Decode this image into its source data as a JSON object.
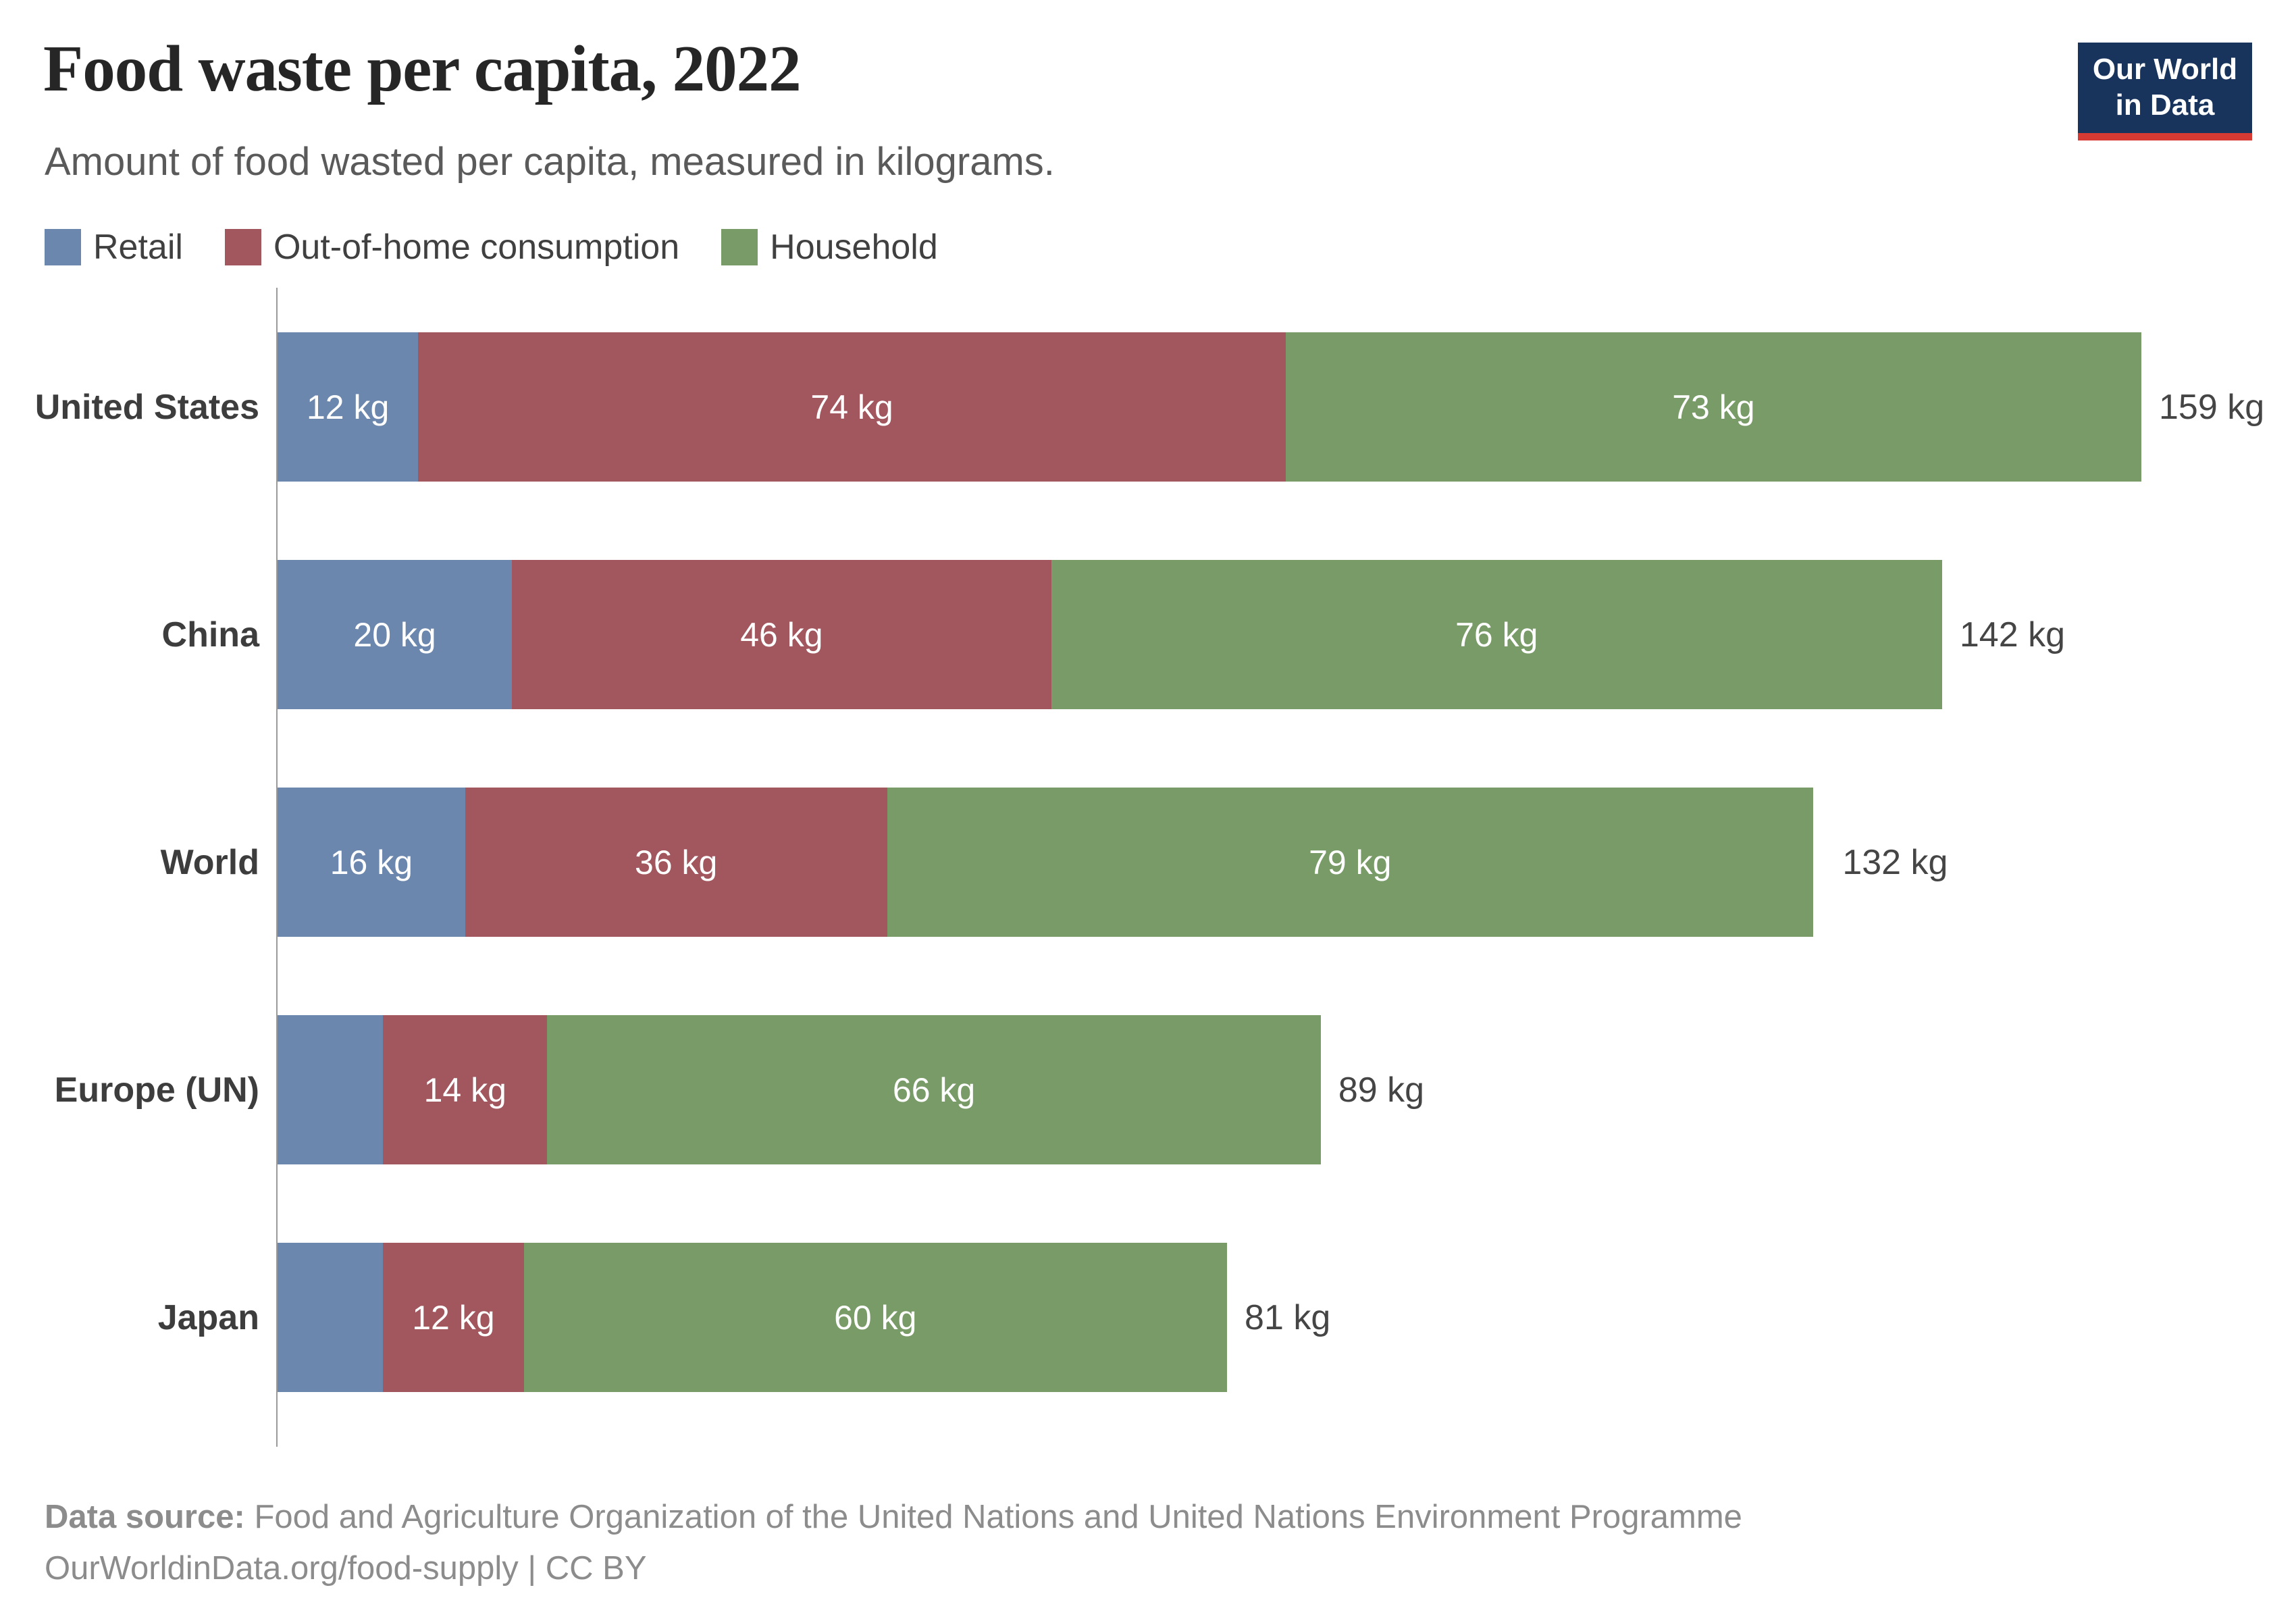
{
  "page": {
    "title": "Food waste per capita, 2022",
    "subtitle": "Amount of food wasted per capita, measured in kilograms."
  },
  "logo": {
    "line1": "Our World",
    "line2": "in Data",
    "bg_color": "#18335c",
    "accent_color": "#d73a33"
  },
  "legend": [
    {
      "label": "Retail",
      "color": "#6c87ad"
    },
    {
      "label": "Out-of-home consumption",
      "color": "#a2575f"
    },
    {
      "label": "Household",
      "color": "#799b67"
    }
  ],
  "chart_data": {
    "type": "bar",
    "orientation": "horizontal",
    "stacked": true,
    "unit": "kg",
    "title": "Food waste per capita, 2022",
    "categories": [
      "United States",
      "China",
      "World",
      "Europe (UN)",
      "Japan"
    ],
    "series": [
      {
        "name": "Retail",
        "color": "#6c87ad",
        "values": [
          12,
          20,
          16,
          9,
          9
        ],
        "labels": [
          "12 kg",
          "20 kg",
          "16 kg",
          "",
          ""
        ]
      },
      {
        "name": "Out-of-home consumption",
        "color": "#a2575f",
        "values": [
          74,
          46,
          36,
          14,
          12
        ],
        "labels": [
          "74 kg",
          "46 kg",
          "36 kg",
          "14 kg",
          "12 kg"
        ]
      },
      {
        "name": "Household",
        "color": "#799b67",
        "values": [
          73,
          76,
          79,
          66,
          60
        ],
        "labels": [
          "73 kg",
          "76 kg",
          "79 kg",
          "66 kg",
          "60 kg"
        ]
      }
    ],
    "totals": [
      159,
      142,
      132,
      89,
      81
    ],
    "total_labels": [
      "159 kg",
      "142 kg",
      "132 kg",
      "89 kg",
      "81 kg"
    ],
    "xmax": 159,
    "grid": false,
    "legend_position": "top"
  },
  "footer": {
    "source_label": "Data source:",
    "source_text": "Food and Agriculture Organization of the United Nations and United Nations Environment Programme",
    "url": "OurWorldinData.org/food-supply",
    "separator": "|",
    "license": "CC BY"
  }
}
